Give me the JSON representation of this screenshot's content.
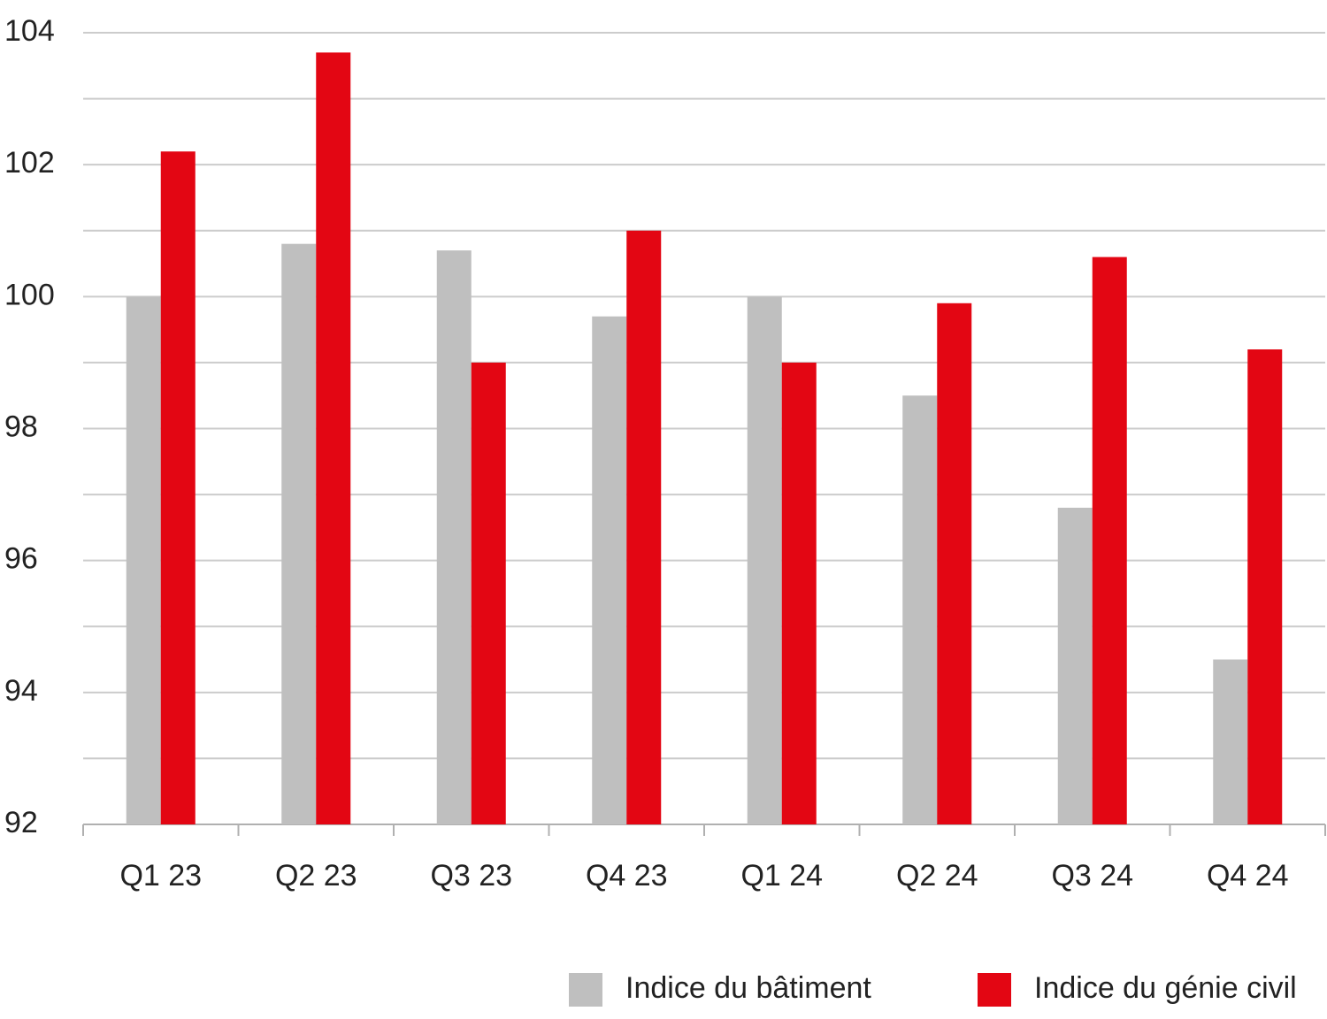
{
  "chart_data": {
    "type": "bar",
    "categories": [
      "Q1 23",
      "Q2 23",
      "Q3 23",
      "Q4 23",
      "Q1 24",
      "Q2 24",
      "Q3 24",
      "Q4 24"
    ],
    "series": [
      {
        "name": "Indice du bâtiment",
        "color": "#bfbfbf",
        "values": [
          100,
          100.8,
          100.7,
          99.7,
          100,
          98.5,
          96.8,
          94.5
        ]
      },
      {
        "name": "Indice du génie civil",
        "color": "#e30613",
        "values": [
          102.2,
          103.7,
          99.0,
          101.0,
          99.0,
          99.9,
          100.6,
          99.2
        ]
      }
    ],
    "ylim": [
      92,
      104
    ],
    "yticks": [
      92,
      {
        "value": 93,
        "label": null
      },
      94,
      {
        "value": 95,
        "label": null
      },
      96,
      {
        "value": 97,
        "label": null
      },
      98,
      {
        "value": 99,
        "label": null
      },
      100,
      {
        "value": 101,
        "label": null
      },
      102,
      {
        "value": 103,
        "label": null
      },
      104
    ],
    "grid": true,
    "legend": "bottom-right"
  }
}
